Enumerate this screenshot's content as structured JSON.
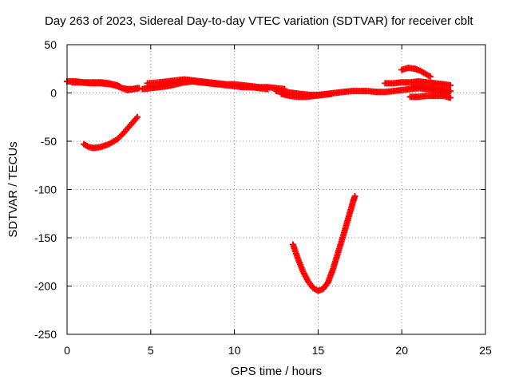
{
  "chart_data": {
    "type": "scatter",
    "title": "Day 263 of 2023, Sidereal Day-to-day VTEC variation (SDTVAR) for receiver cblt",
    "xlabel": "GPS time / hours",
    "ylabel": "SDTVAR / TECUs",
    "xlim": [
      0,
      25
    ],
    "ylim": [
      -250,
      50
    ],
    "xticks": [
      0,
      5,
      10,
      15,
      20,
      25
    ],
    "yticks": [
      -250,
      -200,
      -150,
      -100,
      -50,
      0,
      50
    ],
    "grid": true,
    "marker": "plus",
    "color": "#ff0000",
    "series": [
      {
        "x": [
          0.0,
          0.5,
          1.0,
          1.5,
          2.0,
          2.5,
          3.0,
          3.3,
          3.6,
          4.0,
          4.3
        ],
        "y": [
          12,
          12,
          11,
          11,
          11,
          10,
          8,
          5,
          3,
          4,
          5
        ]
      },
      {
        "x": [
          0.3,
          0.8,
          1.4,
          2.0,
          2.6,
          3.0,
          3.3,
          3.6,
          3.9,
          4.2
        ],
        "y": [
          11,
          11,
          10,
          10,
          9,
          7,
          5,
          4,
          4,
          5
        ]
      },
      {
        "x": [
          1.0,
          1.3,
          1.6,
          2.0,
          2.5,
          3.0,
          3.3,
          3.6,
          3.9,
          4.2
        ],
        "y": [
          -53,
          -56,
          -57,
          -56,
          -53,
          -48,
          -43,
          -37,
          -31,
          -25
        ]
      },
      {
        "x": [
          4.8,
          5.5,
          6.0,
          6.5,
          7.0,
          7.5,
          8.0,
          8.5,
          9.0,
          9.5,
          10.0,
          10.5,
          11.0,
          11.5,
          12.0,
          12.5,
          13.0
        ],
        "y": [
          10,
          11,
          12,
          13,
          14,
          13,
          12,
          11,
          10,
          9,
          9,
          8,
          7,
          6,
          6,
          5,
          4
        ]
      },
      {
        "x": [
          4.8,
          5.5,
          6.0,
          6.5,
          7.0,
          7.5,
          8.0,
          8.5,
          9.0,
          9.5,
          10.0,
          10.5,
          11.0,
          11.5,
          12.0
        ],
        "y": [
          7,
          8,
          10,
          11,
          12,
          12,
          11,
          10,
          9,
          8,
          7,
          6,
          6,
          5,
          4
        ]
      },
      {
        "x": [
          4.5,
          5.0,
          5.5,
          6.0,
          6.5,
          7.0,
          7.5,
          8.0,
          8.5,
          9.0
        ],
        "y": [
          4,
          5,
          6,
          7,
          9,
          11,
          12,
          11,
          10,
          9
        ]
      },
      {
        "x": [
          12.5,
          13.0,
          13.5,
          14.0,
          14.5,
          15.0,
          15.5,
          16.0,
          16.5,
          17.0,
          17.5,
          18.0,
          18.5
        ],
        "y": [
          2,
          1,
          0,
          -1,
          -2,
          -2,
          -1,
          0,
          1,
          2,
          2,
          2,
          1
        ]
      },
      {
        "x": [
          12.8,
          13.3,
          13.8,
          14.3,
          14.8,
          15.3,
          15.8
        ],
        "y": [
          -1,
          -3,
          -4,
          -4,
          -3,
          -2,
          -1
        ]
      },
      {
        "x": [
          13.5,
          13.8,
          14.1,
          14.4,
          14.7,
          15.0,
          15.3,
          15.6,
          15.9,
          16.2,
          16.5,
          16.8,
          17.1,
          17.2
        ],
        "y": [
          -157,
          -172,
          -185,
          -195,
          -202,
          -205,
          -203,
          -196,
          -182,
          -165,
          -148,
          -130,
          -112,
          -107
        ]
      },
      {
        "x": [
          18.5,
          19.0,
          19.5,
          20.0,
          20.5,
          21.0,
          21.5,
          22.0,
          22.5,
          22.8
        ],
        "y": [
          1,
          1,
          2,
          3,
          4,
          5,
          4,
          3,
          2,
          1
        ]
      },
      {
        "x": [
          19.0,
          19.5,
          20.0,
          20.5,
          21.0,
          21.5,
          22.0,
          22.5,
          22.9
        ],
        "y": [
          10,
          10,
          11,
          11,
          12,
          11,
          10,
          9,
          8
        ]
      },
      {
        "x": [
          20.0,
          20.4,
          20.8,
          21.1,
          21.4,
          21.7
        ],
        "y": [
          24,
          26,
          25,
          23,
          20,
          17
        ]
      },
      {
        "x": [
          20.5,
          21.0,
          21.5,
          22.0,
          22.5,
          22.9
        ],
        "y": [
          -4,
          -4,
          -3,
          -3,
          -3,
          -5
        ]
      },
      {
        "x": [
          20.6,
          21.1,
          21.6,
          22.1,
          22.6,
          22.9
        ],
        "y": [
          6,
          7,
          5,
          4,
          3,
          2
        ]
      }
    ]
  }
}
